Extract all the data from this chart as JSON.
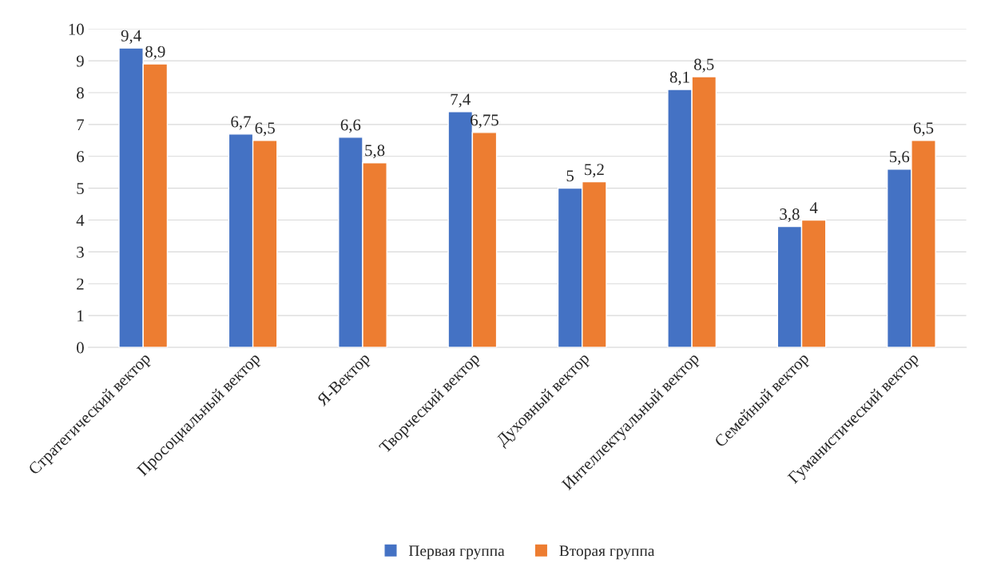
{
  "chart_data": {
    "type": "bar",
    "categories": [
      "Стратегический вектор",
      "Просоциальный вектор",
      "Я-Вектор",
      "Творческий вектор",
      "Духовный вектор",
      "Интеллектуальный вектор",
      "Семейный вектор",
      "Гуманистический вектор"
    ],
    "series": [
      {
        "name": "Первая группа",
        "color": "#4472c4",
        "values": [
          9.4,
          6.7,
          6.6,
          7.4,
          5,
          8.1,
          3.8,
          5.6
        ],
        "value_labels": [
          "9,4",
          "6,7",
          "6,6",
          "7,4",
          "5",
          "8,1",
          "3,8",
          "5,6"
        ]
      },
      {
        "name": "Вторая группа",
        "color": "#ed7d31",
        "values": [
          8.9,
          6.5,
          5.8,
          6.75,
          5.2,
          8.5,
          4,
          6.5
        ],
        "value_labels": [
          "8,9",
          "6,5",
          "5,8",
          "6,75",
          "5,2",
          "8,5",
          "4",
          "6,5"
        ]
      }
    ],
    "ylim": [
      0,
      10
    ],
    "yticks": [
      0,
      1,
      2,
      3,
      4,
      5,
      6,
      7,
      8,
      9,
      10
    ],
    "grid": "y",
    "legend": "bottom"
  }
}
